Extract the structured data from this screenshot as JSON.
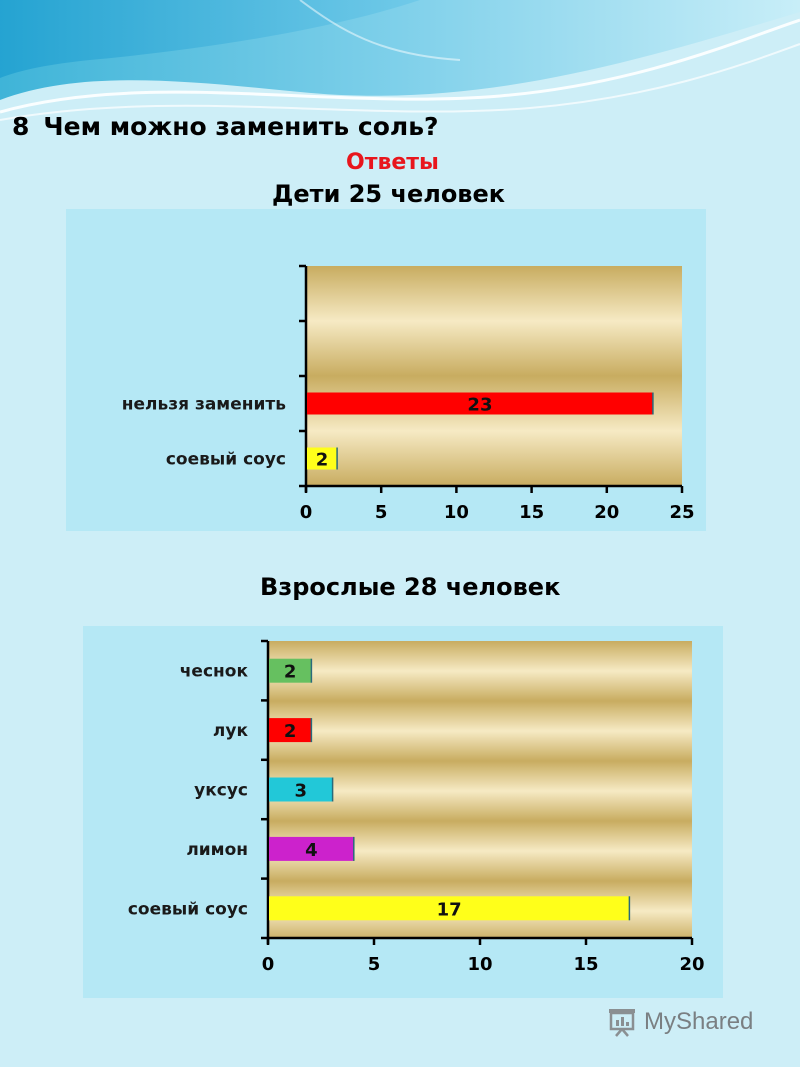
{
  "slide": {
    "question_number": "8",
    "question": "Чем можно заменить соль?",
    "answers_label": "Ответы",
    "watermark": "MyShared"
  },
  "colors": {
    "background": "#cdeef7",
    "panel": "#b5e8f5",
    "answers_text": "#e8161d"
  },
  "chart_data": [
    {
      "type": "bar",
      "orientation": "horizontal",
      "title": "Дети 25 человек",
      "categories": [
        "",
        "",
        "нельзя заменить",
        "соевый соус"
      ],
      "values": [
        null,
        null,
        23,
        2
      ],
      "data_labels": [
        "",
        "",
        "23",
        "2"
      ],
      "bar_colors": [
        "",
        "",
        "#ff0000",
        "#ffff1a"
      ],
      "xlim": [
        0,
        25
      ],
      "xticks": [
        0,
        5,
        10,
        15,
        20,
        25
      ],
      "xlabel": "",
      "ylabel": "",
      "grid": false,
      "legend": "none"
    },
    {
      "type": "bar",
      "orientation": "horizontal",
      "title": "Взрослые 28 человек",
      "categories": [
        "чеснок",
        "лук",
        "уксус",
        "лимон",
        "соевый соус"
      ],
      "values": [
        2,
        2,
        3,
        4,
        17
      ],
      "data_labels": [
        "2",
        "2",
        "3",
        "4",
        "17"
      ],
      "bar_colors": [
        "#66c060",
        "#ff0000",
        "#22c8d8",
        "#cc22cc",
        "#ffff1a"
      ],
      "xlim": [
        0,
        20
      ],
      "xticks": [
        0,
        5,
        10,
        15,
        20
      ],
      "xlabel": "",
      "ylabel": "",
      "grid": false,
      "legend": "none"
    }
  ]
}
